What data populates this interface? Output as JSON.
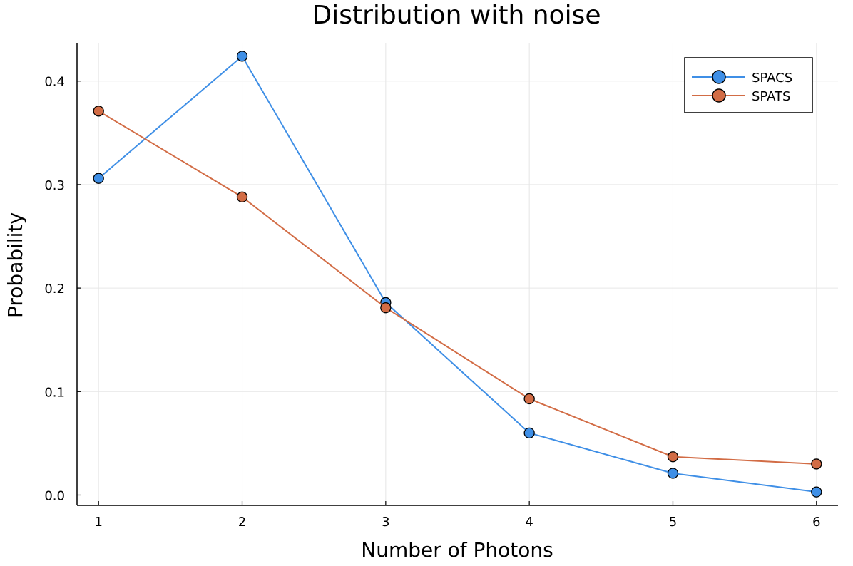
{
  "chart_data": {
    "type": "line",
    "title": "Distribution with noise",
    "xlabel": "Number of Photons",
    "ylabel": "Probability",
    "x": [
      1,
      2,
      3,
      4,
      5,
      6
    ],
    "xlim": [
      0.85,
      6.15
    ],
    "ylim": [
      -0.01,
      0.437
    ],
    "xticks": [
      1,
      2,
      3,
      4,
      5,
      6
    ],
    "xtick_labels": [
      "1",
      "2",
      "3",
      "4",
      "5",
      "6"
    ],
    "yticks": [
      0.0,
      0.1,
      0.2,
      0.3,
      0.4
    ],
    "ytick_labels": [
      "0.0",
      "0.1",
      "0.2",
      "0.3",
      "0.4"
    ],
    "grid": true,
    "legend_position": "top-right",
    "series": [
      {
        "name": "SPACS",
        "color": "#3f8fe6",
        "values": [
          0.306,
          0.424,
          0.186,
          0.06,
          0.021,
          0.003
        ]
      },
      {
        "name": "SPATS",
        "color": "#d26c45",
        "values": [
          0.371,
          0.288,
          0.181,
          0.093,
          0.037,
          0.03
        ]
      }
    ]
  }
}
